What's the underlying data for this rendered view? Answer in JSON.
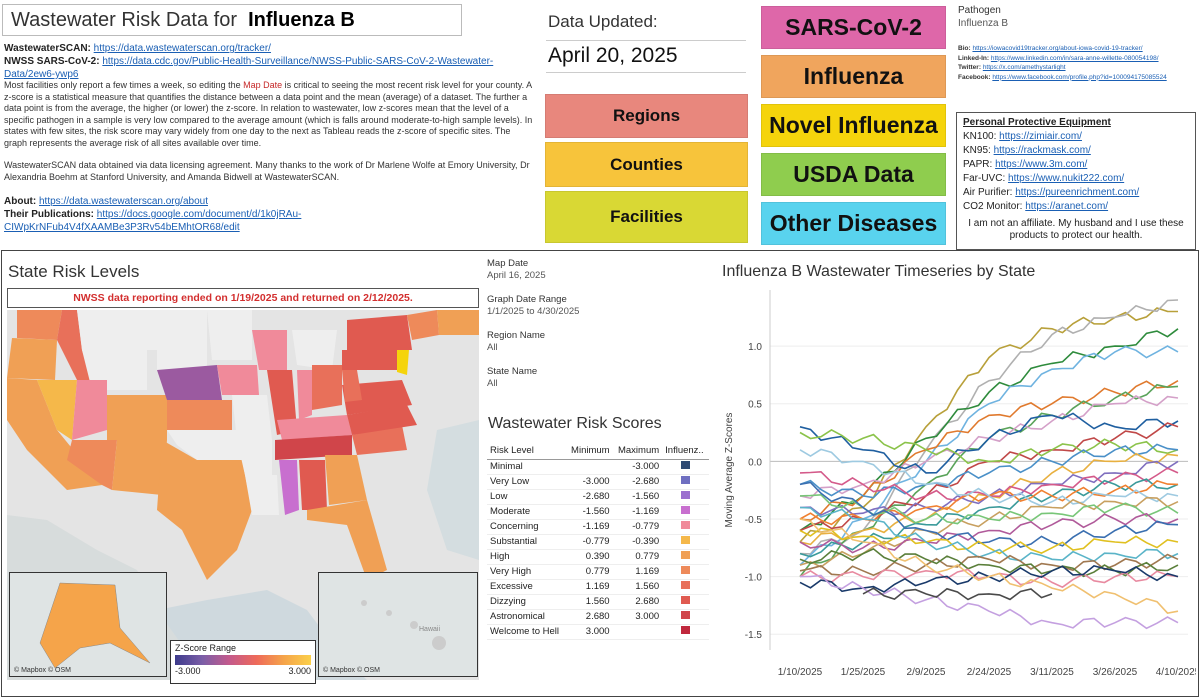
{
  "header": {
    "title_prefix": "Wastewater Risk Data for",
    "title_pathogen": "Influenza B"
  },
  "sources": [
    {
      "label": "WastewaterSCAN:",
      "url": "https://data.wastewaterscan.org/tracker/"
    },
    {
      "label": "NWSS SARS-CoV-2:",
      "url": "https://data.cdc.gov/Public-Health-Surveillance/NWSS-Public-SARS-CoV-2-Wastewater-Data/2ew6-ywp6"
    }
  ],
  "description": {
    "part1": "Most facilities only report a few times a week, so editing the ",
    "map_date_link": "Map Date",
    "part2": " is critical to seeing the most recent risk level for your county. A z-score is a statistical measure that quantifies the distance between a data point and the mean (average) of a dataset. The further a data point is from the average, the higher (or lower) the z-score. In relation to wastewater, low z-scores mean that the level of a specific pathogen in a sample is very low compared to the average amount (which is falls around moderate-to-high sample levels). In states with few sites, the risk score may vary widely from one day to the next as Tableau reads the z-score of specific sites. The graph represents the average risk of all sites available over time.",
    "thanks": "WastewaterSCAN data obtained via data licensing agreement. Many thanks to the work of Dr Marlene Wolfe at Emory University, Dr Alexandria Boehm at Stanford University, and Amanda Bidwell at WastewaterSCAN."
  },
  "about": {
    "label": "About:",
    "url": "https://data.wastewaterscan.org/about"
  },
  "publications": {
    "label": "Their Publications:",
    "url": "https://docs.google.com/document/d/1k0jRAu-CIWpKrNFub4V4fXAAMBe3P3Rv54bEMhtOR68/edit"
  },
  "updated": {
    "label": "Data Updated:",
    "date": "April 20, 2025"
  },
  "nav": {
    "regions": "Regions",
    "counties": "Counties",
    "facilities": "Facilities"
  },
  "diseases": {
    "sars": "SARS-CoV-2",
    "influenza": "Influenza",
    "novel": "Novel Influenza",
    "usda": "USDA Data",
    "other": "Other Diseases"
  },
  "colors": {
    "regions": "#e8877d",
    "counties": "#f7c43b",
    "facilities": "#d9d834",
    "sars": "#de67a9",
    "influenza": "#f0a55d",
    "novel": "#f5d40c",
    "usda": "#8fcd4e",
    "other": "#59d3ee"
  },
  "pathogen": {
    "label": "Pathogen",
    "value": "Influenza B"
  },
  "social": [
    {
      "label": "Bio:",
      "url": "https://iowacovid19tracker.org/about-iowa-covid-19-tracker/"
    },
    {
      "label": "Linked-In:",
      "url": "https://www.linkedin.com/in/sara-anne-willette-080054198/"
    },
    {
      "label": "Twitter:",
      "url": "https://x.com/amethystarlight"
    },
    {
      "label": "Facebook:",
      "url": "https://www.facebook.com/profile.php?id=100094175085524"
    }
  ],
  "ppe": {
    "heading": "Personal Protective Equipment",
    "items": [
      {
        "label": "KN100:",
        "url": "https://zimiair.com/"
      },
      {
        "label": "KN95:",
        "url": "https://rackmask.com/"
      },
      {
        "label": "PAPR:",
        "url": "https://www.3m.com/"
      },
      {
        "label": "Far-UVC:",
        "url": "https://www.nukit222.com/"
      },
      {
        "label": "Air Purifier:",
        "url": "https://pureenrichment.com/"
      },
      {
        "label": "CO2 Monitor:",
        "url": "https://aranet.com/"
      }
    ],
    "note": "I am not an affiliate. My husband and I use these products to protect our health."
  },
  "map": {
    "title": "State Risk Levels",
    "alert": "NWSS data reporting ended on 1/19/2025 and returned on 2/12/2025.",
    "legend_title": "Z-Score Range",
    "legend_min": "-3.000",
    "legend_max": "3.000",
    "credit": "© Mapbox © OSM",
    "hawaii_label": "Hawaii"
  },
  "filters": [
    {
      "label": "Map Date",
      "value": "April 16, 2025"
    },
    {
      "label": "Graph Date Range",
      "value": "1/1/2025 to 4/30/2025"
    },
    {
      "label": "Region Name",
      "value": "All"
    },
    {
      "label": "State Name",
      "value": "All"
    }
  ],
  "risk_table": {
    "title": "Wastewater Risk Scores",
    "headers": [
      "Risk Level",
      "Minimum",
      "Maximum",
      "Influenz.."
    ],
    "rows": [
      {
        "level": "Minimal",
        "min": "",
        "max": "-3.000",
        "color": "#2e4a73"
      },
      {
        "level": "Very Low",
        "min": "-3.000",
        "max": "-2.680",
        "color": "#6f6fc1"
      },
      {
        "level": "Low",
        "min": "-2.680",
        "max": "-1.560",
        "color": "#9b6fcf"
      },
      {
        "level": "Moderate",
        "min": "-1.560",
        "max": "-1.169",
        "color": "#c86fcf"
      },
      {
        "level": "Concerning",
        "min": "-1.169",
        "max": "-0.779",
        "color": "#f08a9a"
      },
      {
        "level": "Substantial",
        "min": "-0.779",
        "max": "-0.390",
        "color": "#f5b84a"
      },
      {
        "level": "High",
        "min": "0.390",
        "max": "0.779",
        "color": "#f0a055"
      },
      {
        "level": "Very High",
        "min": "0.779",
        "max": "1.169",
        "color": "#ee8a5a"
      },
      {
        "level": "Excessive",
        "min": "1.169",
        "max": "1.560",
        "color": "#e8705a"
      },
      {
        "level": "Dizzying",
        "min": "1.560",
        "max": "2.680",
        "color": "#e05a50"
      },
      {
        "level": "Astronomical",
        "min": "2.680",
        "max": "3.000",
        "color": "#d0454a"
      },
      {
        "level": "Welcome to Hell",
        "min": "3.000",
        "max": "",
        "color": "#c0283d"
      }
    ]
  },
  "chart_data": {
    "type": "line",
    "title": "Influenza B Wastewater Timeseries by State",
    "ylabel": "Moving Average Z-Scores",
    "xlabel": "",
    "x": [
      "1/10/2025",
      "1/25/2025",
      "2/9/2025",
      "2/24/2025",
      "3/11/2025",
      "3/26/2025",
      "4/10/2025"
    ],
    "yticks": [
      "1.0",
      "0.5",
      "0.0",
      "-0.5",
      "-1.0",
      "-1.5"
    ],
    "ylim": [
      -1.55,
      1.4
    ],
    "series": [
      {
        "color": "#b8a03a",
        "values": [
          -0.7,
          -0.4,
          0.3,
          0.9,
          1.15,
          1.25,
          1.3
        ]
      },
      {
        "color": "#b0b0b0",
        "values": [
          -0.8,
          -0.6,
          0.1,
          0.7,
          1.1,
          1.25,
          1.4
        ]
      },
      {
        "color": "#2e8b3c",
        "values": [
          -0.6,
          -0.3,
          0.2,
          0.6,
          0.85,
          1.0,
          1.15
        ]
      },
      {
        "color": "#6fb3e0",
        "values": [
          -0.9,
          -0.5,
          0.0,
          0.5,
          0.8,
          0.95,
          0.95
        ]
      },
      {
        "color": "#e07a2e",
        "values": [
          -0.5,
          -0.3,
          0.1,
          0.4,
          0.5,
          0.6,
          0.7
        ]
      },
      {
        "color": "#5aa35a",
        "values": [
          -1.0,
          -0.6,
          -0.2,
          0.2,
          0.4,
          0.55,
          0.65
        ]
      },
      {
        "color": "#d4a0c8",
        "values": [
          -0.3,
          -0.2,
          0.0,
          0.2,
          0.35,
          0.5,
          0.55
        ]
      },
      {
        "color": "#1f5fa0",
        "values": [
          0.3,
          0.1,
          -0.1,
          0.2,
          0.4,
          0.3,
          0.35
        ]
      },
      {
        "color": "#c04848",
        "values": [
          -0.6,
          -0.5,
          -0.3,
          0.0,
          0.1,
          0.2,
          0.3
        ]
      },
      {
        "color": "#8bc34a",
        "values": [
          0.25,
          0.2,
          0.1,
          0.0,
          0.1,
          0.15,
          0.1
        ]
      },
      {
        "color": "#4a90c8",
        "values": [
          -0.2,
          -0.3,
          -0.2,
          -0.1,
          0.0,
          0.1,
          0.1
        ]
      },
      {
        "color": "#e8b040",
        "values": [
          -0.7,
          -0.6,
          -0.5,
          -0.3,
          -0.1,
          0.0,
          0.05
        ]
      },
      {
        "color": "#7f6fbf",
        "values": [
          -0.4,
          -0.45,
          -0.4,
          -0.3,
          -0.2,
          -0.1,
          0.0
        ]
      },
      {
        "color": "#d45a8a",
        "values": [
          -0.1,
          -0.2,
          -0.3,
          -0.3,
          -0.2,
          -0.15,
          -0.1
        ]
      },
      {
        "color": "#3a9a9a",
        "values": [
          -0.8,
          -0.7,
          -0.55,
          -0.4,
          -0.3,
          -0.2,
          -0.2
        ]
      },
      {
        "color": "#f08030",
        "values": [
          -0.5,
          -0.5,
          -0.4,
          -0.3,
          -0.3,
          -0.25,
          -0.2
        ]
      },
      {
        "color": "#9ecae1",
        "values": [
          0.1,
          0.0,
          -0.2,
          -0.3,
          -0.35,
          -0.3,
          -0.3
        ]
      },
      {
        "color": "#c8a060",
        "values": [
          -0.9,
          -0.8,
          -0.6,
          -0.5,
          -0.4,
          -0.35,
          -0.35
        ]
      },
      {
        "color": "#78c678",
        "values": [
          -0.3,
          -0.4,
          -0.5,
          -0.5,
          -0.45,
          -0.4,
          -0.45
        ]
      },
      {
        "color": "#b05a9a",
        "values": [
          -0.7,
          -0.75,
          -0.7,
          -0.6,
          -0.55,
          -0.5,
          -0.5
        ]
      },
      {
        "color": "#3a6fb0",
        "values": [
          -0.2,
          -0.4,
          -0.6,
          -0.7,
          -0.7,
          -0.6,
          -0.55
        ]
      },
      {
        "color": "#e0c020",
        "values": [
          -0.6,
          -0.65,
          -0.7,
          -0.75,
          -0.75,
          -0.7,
          -0.7
        ]
      },
      {
        "color": "#5ab4c8",
        "values": [
          -0.4,
          -0.5,
          -0.7,
          -0.8,
          -0.85,
          -0.8,
          -0.8
        ]
      },
      {
        "color": "#a07850",
        "values": [
          -0.95,
          -0.95,
          -0.9,
          -0.85,
          -0.9,
          -0.9,
          -0.85
        ]
      },
      {
        "color": "#5a7f3a",
        "values": [
          -0.85,
          -0.8,
          -0.85,
          -0.9,
          -0.95,
          -0.95,
          -0.9
        ]
      },
      {
        "color": "#e88aa0",
        "values": [
          -1.0,
          -1.0,
          -0.95,
          -1.0,
          -1.05,
          -1.0,
          -1.0
        ]
      },
      {
        "color": "#1a3a6a",
        "values": [
          -1.05,
          -1.1,
          -1.05,
          -1.0,
          -0.95,
          -0.95,
          -1.0
        ]
      },
      {
        "color": "#f0c070",
        "values": [
          -0.5,
          -0.7,
          -0.9,
          -1.0,
          -1.1,
          -1.15,
          -1.3
        ]
      },
      {
        "color": "#c4a0e0",
        "values": [
          -1.0,
          -1.1,
          -1.2,
          -1.3,
          -1.4,
          -1.4,
          -1.4
        ]
      },
      {
        "color": "#4a4a4a",
        "values": [
          null,
          -1.15,
          -1.15,
          -1.15,
          -1.15,
          null,
          null
        ]
      }
    ]
  }
}
